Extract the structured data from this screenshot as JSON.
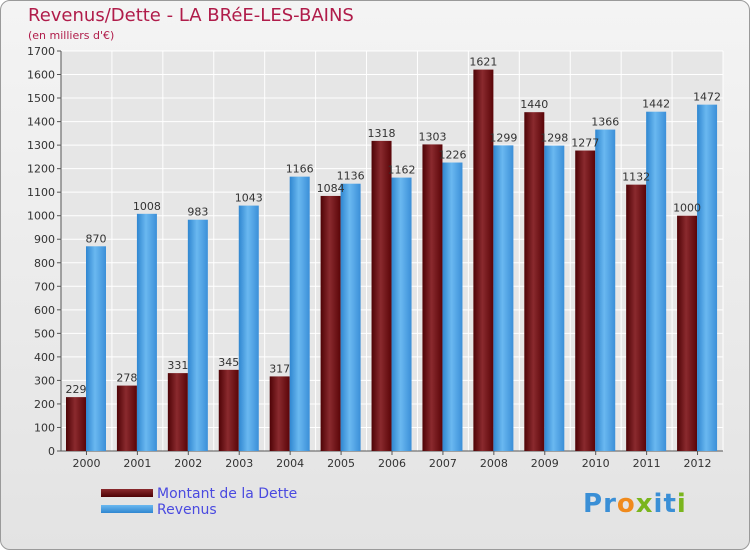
{
  "header": {
    "title": "Revenus/Dette - LA BRéE-LES-BAINS",
    "subtitle": "(en milliers d'€)"
  },
  "legend": [
    {
      "label": "Montant de la Dette",
      "color": "#6e0f12"
    },
    {
      "label": "Revenus",
      "color": "#3c95db"
    }
  ],
  "logo": {
    "text": "Proxiti",
    "letters": [
      "P",
      "r",
      "o",
      "x",
      "i",
      "t",
      "i"
    ],
    "colors": [
      "#3a8fd6",
      "#3a8fd6",
      "#f08a1c",
      "#7ab51d",
      "#3a8fd6",
      "#3a8fd6",
      "#7ab51d"
    ]
  },
  "chart_data": {
    "type": "bar",
    "title": "Revenus/Dette - LA BRéE-LES-BAINS",
    "subtitle": "(en milliers d'€)",
    "categories": [
      "2000",
      "2001",
      "2002",
      "2003",
      "2004",
      "2005",
      "2006",
      "2007",
      "2008",
      "2009",
      "2010",
      "2011",
      "2012"
    ],
    "series": [
      {
        "name": "Montant de la Dette",
        "color": "#6e0f12",
        "values": [
          229,
          278,
          331,
          345,
          317,
          1084,
          1318,
          1303,
          1621,
          1440,
          1277,
          1132,
          1000
        ]
      },
      {
        "name": "Revenus",
        "color": "#3c95db",
        "values": [
          870,
          1008,
          983,
          1043,
          1166,
          1136,
          1162,
          1226,
          1299,
          1298,
          1366,
          1442,
          1472
        ]
      }
    ],
    "ylim": [
      0,
      1700
    ],
    "yticks": [
      0,
      100,
      200,
      300,
      400,
      500,
      600,
      700,
      800,
      900,
      1000,
      1100,
      1200,
      1300,
      1400,
      1500,
      1600,
      1700
    ],
    "grid": true,
    "legend_position": "bottom-left"
  }
}
